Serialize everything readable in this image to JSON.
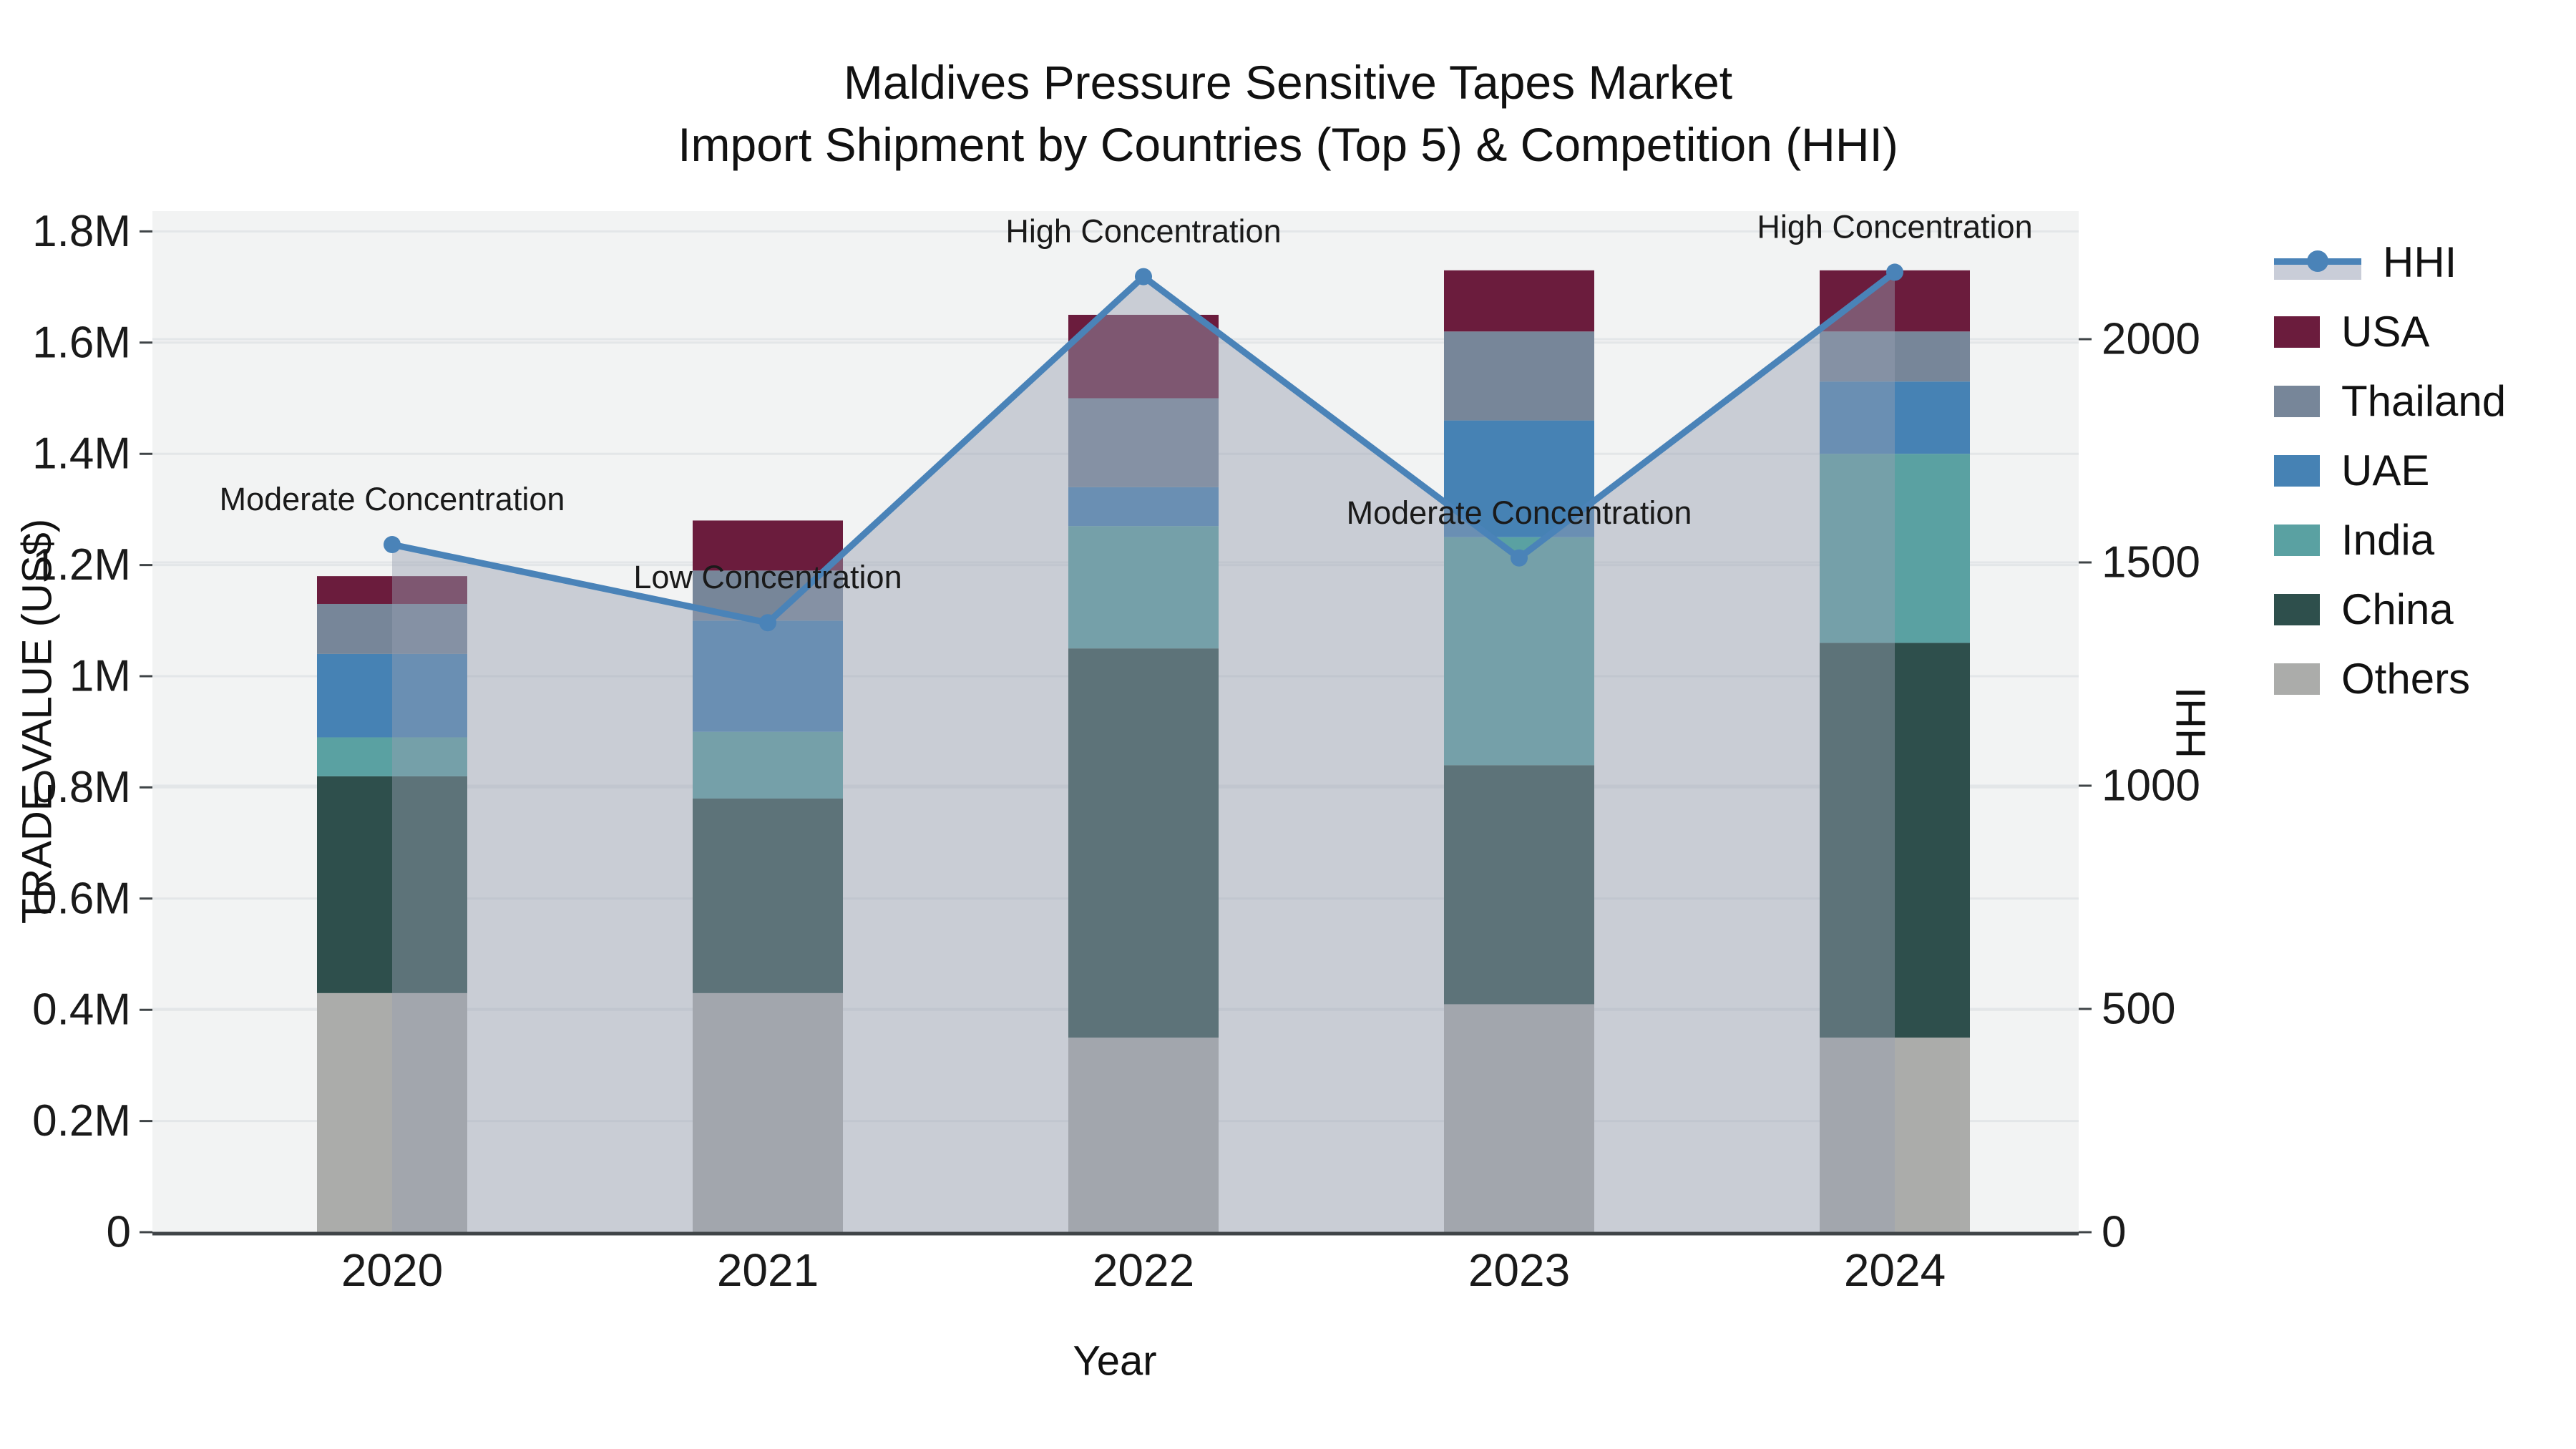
{
  "title": {
    "line1": "Maldives Pressure Sensitive Tapes Market",
    "line2": "Import Shipment by Countries (Top 5) & Competition (HHI)"
  },
  "axes": {
    "y_left": {
      "label": "TRADE VALUE (US$)",
      "tick_labels": [
        "0",
        "0.2M",
        "0.4M",
        "0.6M",
        "0.8M",
        "1M",
        "1.2M",
        "1.4M",
        "1.6M",
        "1.8M"
      ],
      "tick_values": [
        0,
        0.2,
        0.4,
        0.6,
        0.8,
        1.0,
        1.2,
        1.4,
        1.6,
        1.8
      ]
    },
    "y_right": {
      "label": "HHI",
      "tick_labels": [
        "0",
        "500",
        "1000",
        "1500",
        "2000"
      ],
      "tick_values": [
        0,
        500,
        1000,
        1500,
        2000
      ]
    },
    "x": {
      "label": "Year",
      "tick_labels": [
        "2020",
        "2021",
        "2022",
        "2023",
        "2024"
      ]
    }
  },
  "legend": {
    "items": [
      {
        "label": "HHI",
        "swatch": "line",
        "color": "#4a83b8"
      },
      {
        "label": "USA",
        "swatch": "box",
        "color": "#6b1c3d"
      },
      {
        "label": "Thailand",
        "swatch": "box",
        "color": "#778699"
      },
      {
        "label": "UAE",
        "swatch": "box",
        "color": "#4682b4"
      },
      {
        "label": "India",
        "swatch": "box",
        "color": "#5aa1a2"
      },
      {
        "label": "China",
        "swatch": "box",
        "color": "#2e4f4c"
      },
      {
        "label": "Others",
        "swatch": "box",
        "color": "#abacaa"
      }
    ]
  },
  "colors": {
    "plot_background": "#f2f3f3",
    "gridline": "#e3e6e8",
    "axis_spine": "#3f4447",
    "hhi_line": "#4a83b8",
    "hhi_fill": "rgba(150,160,178,0.45)",
    "text": "#1a1a1a"
  },
  "chart_data": {
    "type": "bar",
    "subtype": "stacked bars with overlaid line+area (dual y-axes)",
    "title": "Maldives Pressure Sensitive Tapes Market — Import Shipment by Countries (Top 5) & Competition (HHI)",
    "categories": [
      "2020",
      "2021",
      "2022",
      "2023",
      "2024"
    ],
    "unit_left": "million US$",
    "unit_right": "HHI index",
    "stack_order_bottom_to_top": [
      "Others",
      "China",
      "India",
      "UAE",
      "Thailand",
      "USA"
    ],
    "series": [
      {
        "name": "Others",
        "color": "#abacaa",
        "values": [
          0.43,
          0.43,
          0.35,
          0.41,
          0.35
        ]
      },
      {
        "name": "China",
        "color": "#2e4f4c",
        "values": [
          0.39,
          0.35,
          0.7,
          0.43,
          0.71
        ]
      },
      {
        "name": "India",
        "color": "#5aa1a2",
        "values": [
          0.07,
          0.12,
          0.22,
          0.41,
          0.34
        ]
      },
      {
        "name": "UAE",
        "color": "#4682b4",
        "values": [
          0.15,
          0.2,
          0.07,
          0.21,
          0.13
        ]
      },
      {
        "name": "Thailand",
        "color": "#778699",
        "values": [
          0.09,
          0.09,
          0.16,
          0.16,
          0.09
        ]
      },
      {
        "name": "USA",
        "color": "#6b1c3d",
        "values": [
          0.05,
          0.09,
          0.15,
          0.11,
          0.11
        ]
      }
    ],
    "bar_totals_million": [
      1.18,
      1.28,
      1.65,
      1.73,
      1.73
    ],
    "line_series": {
      "name": "HHI",
      "values": [
        1540,
        1365,
        2140,
        1510,
        2150
      ],
      "annotations": [
        "Moderate Concentration",
        "Low Concentration",
        "High Concentration",
        "Moderate Concentration",
        "High Concentration"
      ]
    },
    "ylim_left_million": [
      0,
      1.84
    ],
    "ylim_right_hhi": [
      0,
      2290
    ],
    "grid": true,
    "legend_position": "right"
  }
}
